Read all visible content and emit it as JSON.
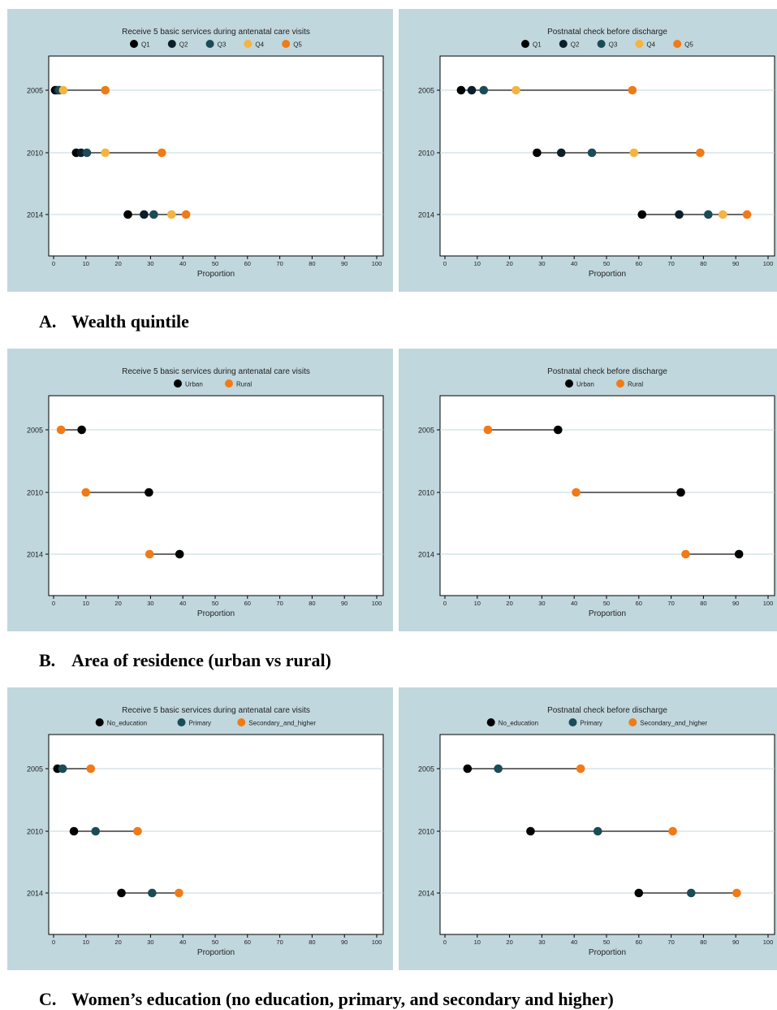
{
  "colors": {
    "Q1": "#000000",
    "Q2": "#0b1e2a",
    "Q3": "#1b4b57",
    "Q4": "#f5b33f",
    "Q5": "#f17a16",
    "Urban": "#000000",
    "Rural": "#f17a16",
    "No_education": "#000000",
    "Primary": "#1b4b57",
    "Secondary_and_higher": "#f17a16",
    "panel_bg": "#c0d7dd",
    "plot_bg": "#ffffff",
    "gridline": "#c0d7dd"
  },
  "sections": [
    {
      "caption_label": "A.",
      "caption_text": "Wealth quintile"
    },
    {
      "caption_label": "B.",
      "caption_text": "Area of residence (urban vs rural)"
    },
    {
      "caption_label": "C.",
      "caption_text": "Women’s education (no education, primary, and secondary and higher)"
    }
  ],
  "chart_data": [
    {
      "type": "scatter",
      "subtype": "dot-range",
      "title": "Receive 5 basic services during antenatal care visits",
      "xlabel": "Proportion",
      "ylabel": "",
      "xlim": [
        0,
        100
      ],
      "xticks": [
        0,
        10,
        20,
        30,
        40,
        50,
        60,
        70,
        80,
        90,
        100
      ],
      "categories": [
        "2005",
        "2010",
        "2014"
      ],
      "grid": "horizontal",
      "legend": "top",
      "series": [
        {
          "name": "Q1",
          "values": [
            0.5,
            7,
            23
          ]
        },
        {
          "name": "Q2",
          "values": [
            1.2,
            8.5,
            28
          ]
        },
        {
          "name": "Q3",
          "values": [
            1.8,
            10.3,
            31
          ]
        },
        {
          "name": "Q4",
          "values": [
            3,
            16,
            36.5
          ]
        },
        {
          "name": "Q5",
          "values": [
            16,
            33.5,
            41
          ]
        }
      ]
    },
    {
      "type": "scatter",
      "subtype": "dot-range",
      "title": "Postnatal check before discharge",
      "xlabel": "Proportion",
      "ylabel": "",
      "xlim": [
        0,
        100
      ],
      "xticks": [
        0,
        10,
        20,
        30,
        40,
        50,
        60,
        70,
        80,
        90,
        100
      ],
      "categories": [
        "2005",
        "2010",
        "2014"
      ],
      "grid": "horizontal",
      "legend": "top",
      "series": [
        {
          "name": "Q1",
          "values": [
            5,
            28.5,
            61
          ]
        },
        {
          "name": "Q2",
          "values": [
            8.3,
            36,
            72.5
          ]
        },
        {
          "name": "Q3",
          "values": [
            12,
            45.5,
            81.5
          ]
        },
        {
          "name": "Q4",
          "values": [
            22,
            58.5,
            86
          ]
        },
        {
          "name": "Q5",
          "values": [
            58,
            79,
            93.5
          ]
        }
      ]
    },
    {
      "type": "scatter",
      "subtype": "dot-range",
      "title": "Receive 5 basic services during antenatal care visits",
      "xlabel": "Proportion",
      "ylabel": "",
      "xlim": [
        0,
        100
      ],
      "xticks": [
        0,
        10,
        20,
        30,
        40,
        50,
        60,
        70,
        80,
        90,
        100
      ],
      "categories": [
        "2005",
        "2010",
        "2014"
      ],
      "grid": "horizontal",
      "legend": "top",
      "series": [
        {
          "name": "Urban",
          "values": [
            8.7,
            29.5,
            39
          ]
        },
        {
          "name": "Rural",
          "values": [
            2.3,
            10,
            29.7
          ]
        }
      ]
    },
    {
      "type": "scatter",
      "subtype": "dot-range",
      "title": "Postnatal check before discharge",
      "xlabel": "Proportion",
      "ylabel": "",
      "xlim": [
        0,
        100
      ],
      "xticks": [
        0,
        10,
        20,
        30,
        40,
        50,
        60,
        70,
        80,
        90,
        100
      ],
      "categories": [
        "2005",
        "2010",
        "2014"
      ],
      "grid": "horizontal",
      "legend": "top",
      "series": [
        {
          "name": "Urban",
          "values": [
            35,
            73,
            91
          ]
        },
        {
          "name": "Rural",
          "values": [
            13.3,
            40.6,
            74.5
          ]
        }
      ]
    },
    {
      "type": "scatter",
      "subtype": "dot-range",
      "title": "Receive 5 basic services during antenatal care visits",
      "xlabel": "Proportion",
      "ylabel": "",
      "xlim": [
        0,
        100
      ],
      "xticks": [
        0,
        10,
        20,
        30,
        40,
        50,
        60,
        70,
        80,
        90,
        100
      ],
      "categories": [
        "2005",
        "2010",
        "2014"
      ],
      "grid": "horizontal",
      "legend": "top",
      "series": [
        {
          "name": "No_education",
          "values": [
            1.2,
            6.3,
            21
          ]
        },
        {
          "name": "Primary",
          "values": [
            2.8,
            13,
            30.5
          ]
        },
        {
          "name": "Secondary_and_higher",
          "values": [
            11.5,
            26,
            38.8
          ]
        }
      ]
    },
    {
      "type": "scatter",
      "subtype": "dot-range",
      "title": "Postnatal check before discharge",
      "xlabel": "Proportion",
      "ylabel": "",
      "xlim": [
        0,
        100
      ],
      "xticks": [
        0,
        10,
        20,
        30,
        40,
        50,
        60,
        70,
        80,
        90,
        100
      ],
      "categories": [
        "2005",
        "2010",
        "2014"
      ],
      "grid": "horizontal",
      "legend": "top",
      "series": [
        {
          "name": "No_education",
          "values": [
            7,
            26.5,
            60
          ]
        },
        {
          "name": "Primary",
          "values": [
            16.5,
            47.3,
            76.2
          ]
        },
        {
          "name": "Secondary_and_higher",
          "values": [
            42,
            70.5,
            90.3
          ]
        }
      ]
    }
  ]
}
